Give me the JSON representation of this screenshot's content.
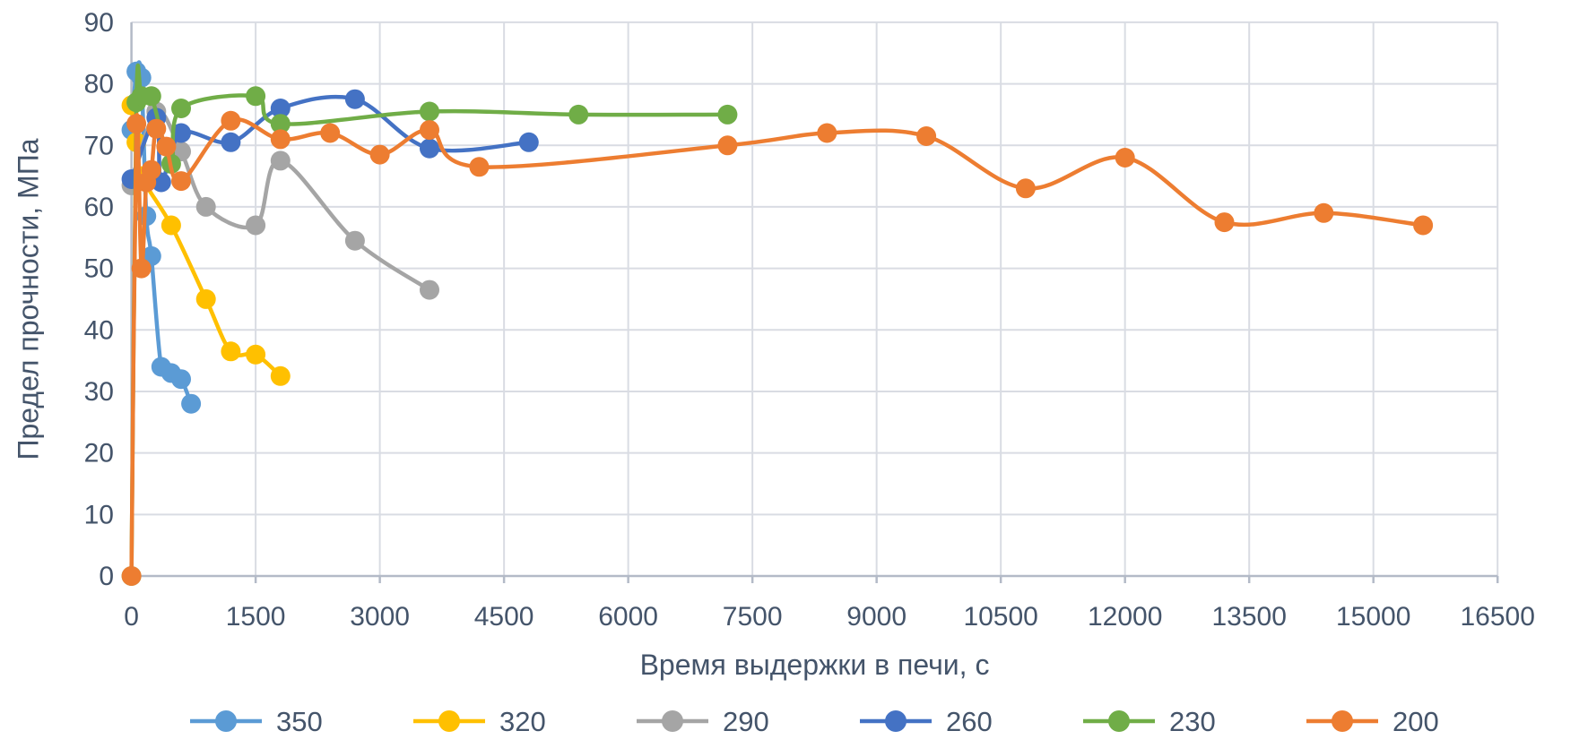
{
  "colors": {
    "background": "#FFFFFF",
    "text": "#44546A",
    "gridline": "#D9DCE3",
    "axis_line": "#B3BAC7"
  },
  "chart_data": {
    "type": "line",
    "title": "",
    "xlabel": "Время выдержки в печи, с",
    "ylabel": "Предел прочности, МПа",
    "xlim": [
      0,
      16500
    ],
    "ylim": [
      0,
      90
    ],
    "x_ticks": [
      0,
      1500,
      3000,
      4500,
      6000,
      7500,
      9000,
      10500,
      12000,
      13500,
      15000,
      16500
    ],
    "y_ticks": [
      0,
      10,
      20,
      30,
      40,
      50,
      60,
      70,
      80,
      90
    ],
    "grid": true,
    "smooth_lines": true,
    "legend_position": "bottom",
    "series": [
      {
        "name": "350",
        "color": "#5B9BD5",
        "points": [
          [
            0,
            72.5
          ],
          [
            60,
            82
          ],
          [
            120,
            81
          ],
          [
            180,
            58.5
          ],
          [
            240,
            52
          ],
          [
            360,
            34
          ],
          [
            480,
            33
          ],
          [
            600,
            32
          ],
          [
            720,
            28
          ]
        ]
      },
      {
        "name": "320",
        "color": "#FFC000",
        "points": [
          [
            0,
            76.5
          ],
          [
            60,
            70.5
          ],
          [
            120,
            65
          ],
          [
            480,
            57
          ],
          [
            900,
            45
          ],
          [
            1200,
            36.5
          ],
          [
            1500,
            36
          ],
          [
            1800,
            32.5
          ]
        ]
      },
      {
        "name": "290",
        "color": "#A5A5A5",
        "points": [
          [
            0,
            63.5
          ],
          [
            300,
            75.5
          ],
          [
            600,
            69
          ],
          [
            900,
            60
          ],
          [
            1500,
            57
          ],
          [
            1800,
            67.5
          ],
          [
            2700,
            54.5
          ],
          [
            3600,
            46.5
          ]
        ]
      },
      {
        "name": "260",
        "color": "#4472C4",
        "points": [
          [
            0,
            64.5
          ],
          [
            300,
            74.5
          ],
          [
            360,
            64
          ],
          [
            600,
            72
          ],
          [
            1200,
            70.5
          ],
          [
            1800,
            76
          ],
          [
            2700,
            77.5
          ],
          [
            3600,
            69.5
          ],
          [
            4800,
            70.5
          ]
        ]
      },
      {
        "name": "230",
        "color": "#70AD47",
        "points": [
          [
            0,
            0
          ],
          [
            60,
            77
          ],
          [
            120,
            78
          ],
          [
            240,
            78
          ],
          [
            480,
            67
          ],
          [
            600,
            76
          ],
          [
            1500,
            78
          ],
          [
            1800,
            73.5
          ],
          [
            3600,
            75.5
          ],
          [
            5400,
            75
          ],
          [
            7200,
            75
          ]
        ]
      },
      {
        "name": "200",
        "color": "#ED7D31",
        "points": [
          [
            0,
            0
          ],
          [
            60,
            73.5
          ],
          [
            120,
            50
          ],
          [
            180,
            64
          ],
          [
            240,
            66
          ],
          [
            300,
            72.7
          ],
          [
            420,
            69.8
          ],
          [
            600,
            64.2
          ],
          [
            1200,
            74
          ],
          [
            1800,
            71
          ],
          [
            2400,
            72
          ],
          [
            3000,
            68.5
          ],
          [
            3600,
            72.5
          ],
          [
            4200,
            66.5
          ],
          [
            7200,
            70
          ],
          [
            8400,
            72
          ],
          [
            9600,
            71.5
          ],
          [
            10800,
            63
          ],
          [
            12000,
            68
          ],
          [
            13200,
            57.5
          ],
          [
            14400,
            59
          ],
          [
            15600,
            57
          ]
        ]
      }
    ],
    "legend_labels": [
      "350",
      "320",
      "290",
      "260",
      "230",
      "200"
    ]
  }
}
